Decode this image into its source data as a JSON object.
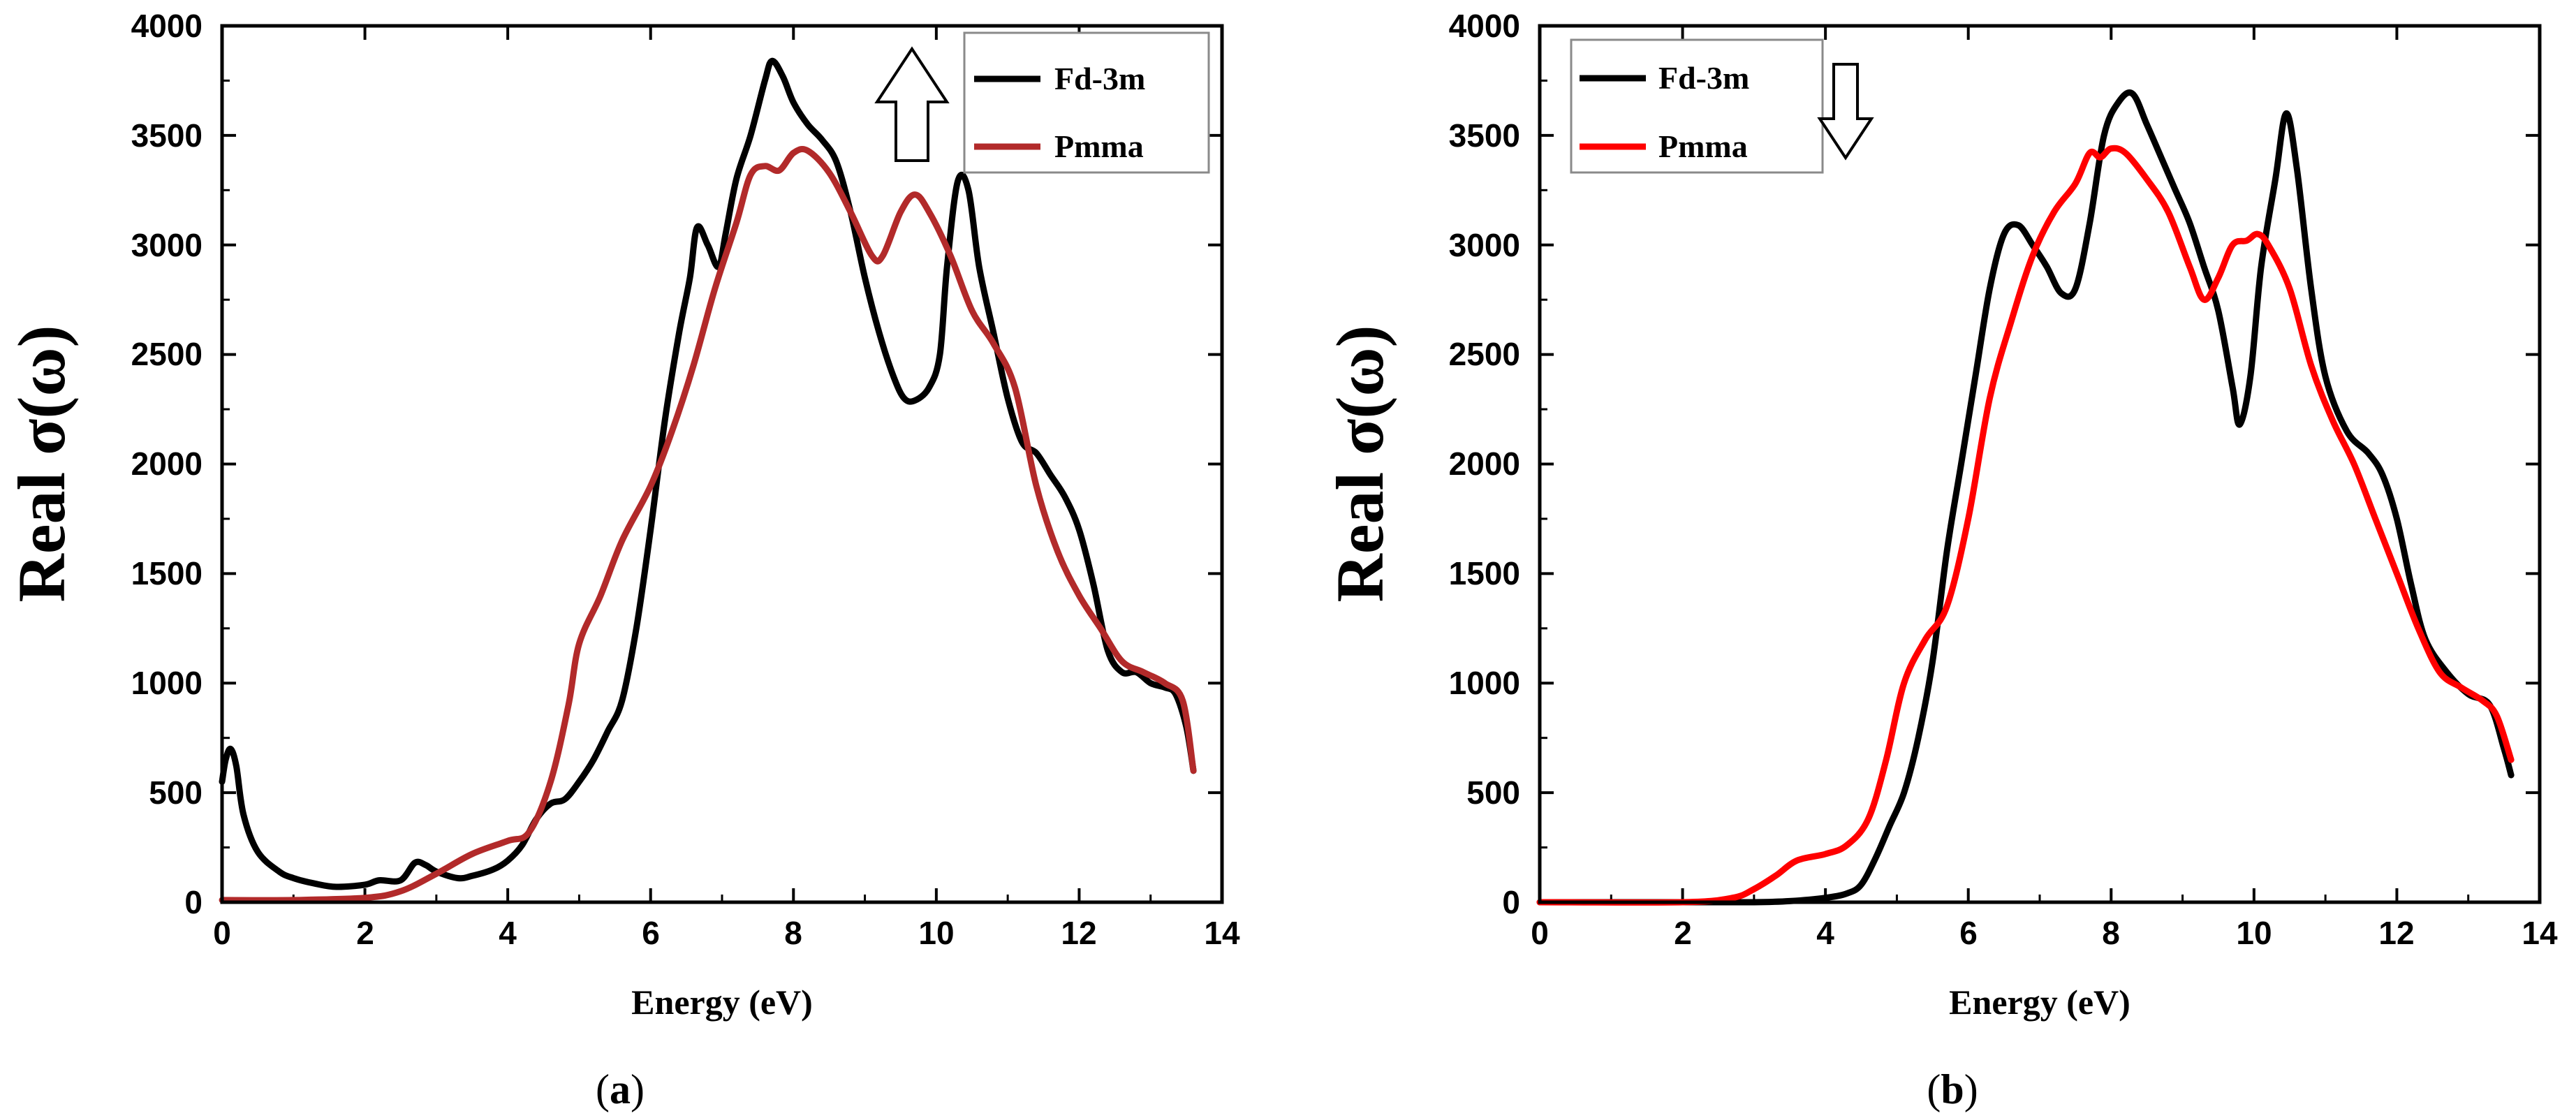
{
  "chart_data": [
    {
      "type": "line",
      "panel_label": "a",
      "xlabel": "Energy (eV)",
      "ylabel": "Real σ(ω)",
      "xlim": [
        0,
        14
      ],
      "ylim": [
        0,
        4000
      ],
      "xticks": [
        0,
        2,
        4,
        6,
        8,
        10,
        12,
        14
      ],
      "yticks": [
        0,
        500,
        1000,
        1500,
        2000,
        2500,
        3000,
        3500,
        4000
      ],
      "spin_arrow": "up",
      "legend_position": "top-right",
      "series": [
        {
          "name": "Fd-3m",
          "color": "#000000",
          "points": [
            [
              0.0,
              550
            ],
            [
              0.05,
              650
            ],
            [
              0.12,
              700
            ],
            [
              0.2,
              620
            ],
            [
              0.3,
              400
            ],
            [
              0.5,
              230
            ],
            [
              0.8,
              140
            ],
            [
              1.0,
              110
            ],
            [
              1.3,
              85
            ],
            [
              1.6,
              70
            ],
            [
              2.0,
              80
            ],
            [
              2.2,
              100
            ],
            [
              2.5,
              100
            ],
            [
              2.7,
              180
            ],
            [
              2.85,
              170
            ],
            [
              3.0,
              140
            ],
            [
              3.3,
              110
            ],
            [
              3.5,
              120
            ],
            [
              3.8,
              150
            ],
            [
              4.0,
              190
            ],
            [
              4.2,
              260
            ],
            [
              4.4,
              380
            ],
            [
              4.6,
              450
            ],
            [
              4.8,
              470
            ],
            [
              5.0,
              550
            ],
            [
              5.2,
              650
            ],
            [
              5.4,
              780
            ],
            [
              5.6,
              920
            ],
            [
              5.8,
              1250
            ],
            [
              6.0,
              1700
            ],
            [
              6.2,
              2200
            ],
            [
              6.4,
              2600
            ],
            [
              6.55,
              2850
            ],
            [
              6.65,
              3080
            ],
            [
              6.8,
              3000
            ],
            [
              6.95,
              2900
            ],
            [
              7.05,
              3050
            ],
            [
              7.2,
              3300
            ],
            [
              7.4,
              3500
            ],
            [
              7.6,
              3750
            ],
            [
              7.7,
              3840
            ],
            [
              7.85,
              3770
            ],
            [
              8.0,
              3650
            ],
            [
              8.2,
              3550
            ],
            [
              8.4,
              3480
            ],
            [
              8.6,
              3380
            ],
            [
              8.8,
              3150
            ],
            [
              9.0,
              2850
            ],
            [
              9.2,
              2600
            ],
            [
              9.4,
              2400
            ],
            [
              9.55,
              2300
            ],
            [
              9.7,
              2290
            ],
            [
              9.9,
              2350
            ],
            [
              10.05,
              2500
            ],
            [
              10.15,
              2900
            ],
            [
              10.3,
              3290
            ],
            [
              10.45,
              3250
            ],
            [
              10.6,
              2900
            ],
            [
              10.8,
              2600
            ],
            [
              11.0,
              2300
            ],
            [
              11.2,
              2100
            ],
            [
              11.4,
              2050
            ],
            [
              11.6,
              1950
            ],
            [
              11.8,
              1850
            ],
            [
              12.0,
              1700
            ],
            [
              12.2,
              1450
            ],
            [
              12.4,
              1150
            ],
            [
              12.6,
              1050
            ],
            [
              12.8,
              1050
            ],
            [
              13.0,
              1000
            ],
            [
              13.2,
              980
            ],
            [
              13.35,
              950
            ],
            [
              13.5,
              800
            ],
            [
              13.6,
              600
            ]
          ]
        },
        {
          "name": "Pmma",
          "color": "#b22a2a",
          "points": [
            [
              0.0,
              10
            ],
            [
              1.0,
              10
            ],
            [
              2.0,
              20
            ],
            [
              2.5,
              50
            ],
            [
              3.0,
              130
            ],
            [
              3.5,
              220
            ],
            [
              4.0,
              280
            ],
            [
              4.3,
              320
            ],
            [
              4.6,
              550
            ],
            [
              4.85,
              900
            ],
            [
              5.0,
              1180
            ],
            [
              5.3,
              1400
            ],
            [
              5.6,
              1650
            ],
            [
              6.0,
              1900
            ],
            [
              6.3,
              2150
            ],
            [
              6.6,
              2450
            ],
            [
              6.9,
              2800
            ],
            [
              7.2,
              3100
            ],
            [
              7.4,
              3320
            ],
            [
              7.6,
              3360
            ],
            [
              7.8,
              3340
            ],
            [
              8.0,
              3420
            ],
            [
              8.2,
              3430
            ],
            [
              8.5,
              3330
            ],
            [
              8.8,
              3150
            ],
            [
              9.1,
              2950
            ],
            [
              9.25,
              2950
            ],
            [
              9.5,
              3150
            ],
            [
              9.7,
              3230
            ],
            [
              9.9,
              3150
            ],
            [
              10.2,
              2950
            ],
            [
              10.5,
              2700
            ],
            [
              10.8,
              2550
            ],
            [
              11.1,
              2350
            ],
            [
              11.4,
              1900
            ],
            [
              11.7,
              1600
            ],
            [
              12.0,
              1400
            ],
            [
              12.3,
              1250
            ],
            [
              12.6,
              1100
            ],
            [
              12.9,
              1050
            ],
            [
              13.2,
              1000
            ],
            [
              13.45,
              920
            ],
            [
              13.6,
              600
            ]
          ]
        }
      ]
    },
    {
      "type": "line",
      "panel_label": "b",
      "xlabel": "Energy (eV)",
      "ylabel": "Real σ(ω)",
      "xlim": [
        0,
        14
      ],
      "ylim": [
        0,
        4000
      ],
      "xticks": [
        0,
        2,
        4,
        6,
        8,
        10,
        12,
        14
      ],
      "yticks": [
        0,
        500,
        1000,
        1500,
        2000,
        2500,
        3000,
        3500,
        4000
      ],
      "spin_arrow": "down",
      "legend_position": "top-left",
      "series": [
        {
          "name": "Fd-3m",
          "color": "#000000",
          "points": [
            [
              0.0,
              0
            ],
            [
              2.0,
              0
            ],
            [
              3.0,
              0
            ],
            [
              3.5,
              5
            ],
            [
              4.0,
              20
            ],
            [
              4.3,
              40
            ],
            [
              4.5,
              80
            ],
            [
              4.7,
              200
            ],
            [
              4.9,
              350
            ],
            [
              5.1,
              500
            ],
            [
              5.3,
              750
            ],
            [
              5.5,
              1100
            ],
            [
              5.7,
              1600
            ],
            [
              5.9,
              2000
            ],
            [
              6.1,
              2400
            ],
            [
              6.3,
              2800
            ],
            [
              6.5,
              3050
            ],
            [
              6.7,
              3090
            ],
            [
              6.9,
              3000
            ],
            [
              7.1,
              2900
            ],
            [
              7.3,
              2780
            ],
            [
              7.5,
              2800
            ],
            [
              7.7,
              3100
            ],
            [
              7.9,
              3500
            ],
            [
              8.1,
              3650
            ],
            [
              8.3,
              3690
            ],
            [
              8.5,
              3550
            ],
            [
              8.7,
              3400
            ],
            [
              8.9,
              3250
            ],
            [
              9.1,
              3100
            ],
            [
              9.3,
              2900
            ],
            [
              9.5,
              2700
            ],
            [
              9.7,
              2350
            ],
            [
              9.8,
              2180
            ],
            [
              9.95,
              2400
            ],
            [
              10.1,
              2900
            ],
            [
              10.3,
              3300
            ],
            [
              10.45,
              3600
            ],
            [
              10.6,
              3350
            ],
            [
              10.8,
              2800
            ],
            [
              11.0,
              2400
            ],
            [
              11.3,
              2150
            ],
            [
              11.6,
              2050
            ],
            [
              11.8,
              1950
            ],
            [
              12.0,
              1750
            ],
            [
              12.2,
              1450
            ],
            [
              12.4,
              1200
            ],
            [
              12.7,
              1050
            ],
            [
              13.0,
              950
            ],
            [
              13.3,
              900
            ],
            [
              13.5,
              700
            ],
            [
              13.6,
              580
            ]
          ]
        },
        {
          "name": "Pmma",
          "color": "#ff0000",
          "points": [
            [
              0.0,
              0
            ],
            [
              2.0,
              0
            ],
            [
              2.7,
              20
            ],
            [
              3.0,
              60
            ],
            [
              3.3,
              120
            ],
            [
              3.6,
              190
            ],
            [
              4.0,
              220
            ],
            [
              4.3,
              260
            ],
            [
              4.6,
              380
            ],
            [
              4.85,
              650
            ],
            [
              5.1,
              1000
            ],
            [
              5.4,
              1200
            ],
            [
              5.7,
              1350
            ],
            [
              6.0,
              1750
            ],
            [
              6.3,
              2300
            ],
            [
              6.6,
              2650
            ],
            [
              6.9,
              2950
            ],
            [
              7.2,
              3150
            ],
            [
              7.5,
              3280
            ],
            [
              7.7,
              3420
            ],
            [
              7.85,
              3400
            ],
            [
              8.0,
              3440
            ],
            [
              8.2,
              3420
            ],
            [
              8.5,
              3300
            ],
            [
              8.8,
              3150
            ],
            [
              9.1,
              2900
            ],
            [
              9.3,
              2750
            ],
            [
              9.5,
              2850
            ],
            [
              9.7,
              3000
            ],
            [
              9.9,
              3020
            ],
            [
              10.05,
              3050
            ],
            [
              10.2,
              3000
            ],
            [
              10.5,
              2800
            ],
            [
              10.8,
              2450
            ],
            [
              11.1,
              2200
            ],
            [
              11.4,
              2000
            ],
            [
              11.7,
              1750
            ],
            [
              12.0,
              1500
            ],
            [
              12.3,
              1250
            ],
            [
              12.6,
              1050
            ],
            [
              12.9,
              980
            ],
            [
              13.2,
              920
            ],
            [
              13.4,
              850
            ],
            [
              13.6,
              650
            ]
          ]
        }
      ]
    }
  ]
}
